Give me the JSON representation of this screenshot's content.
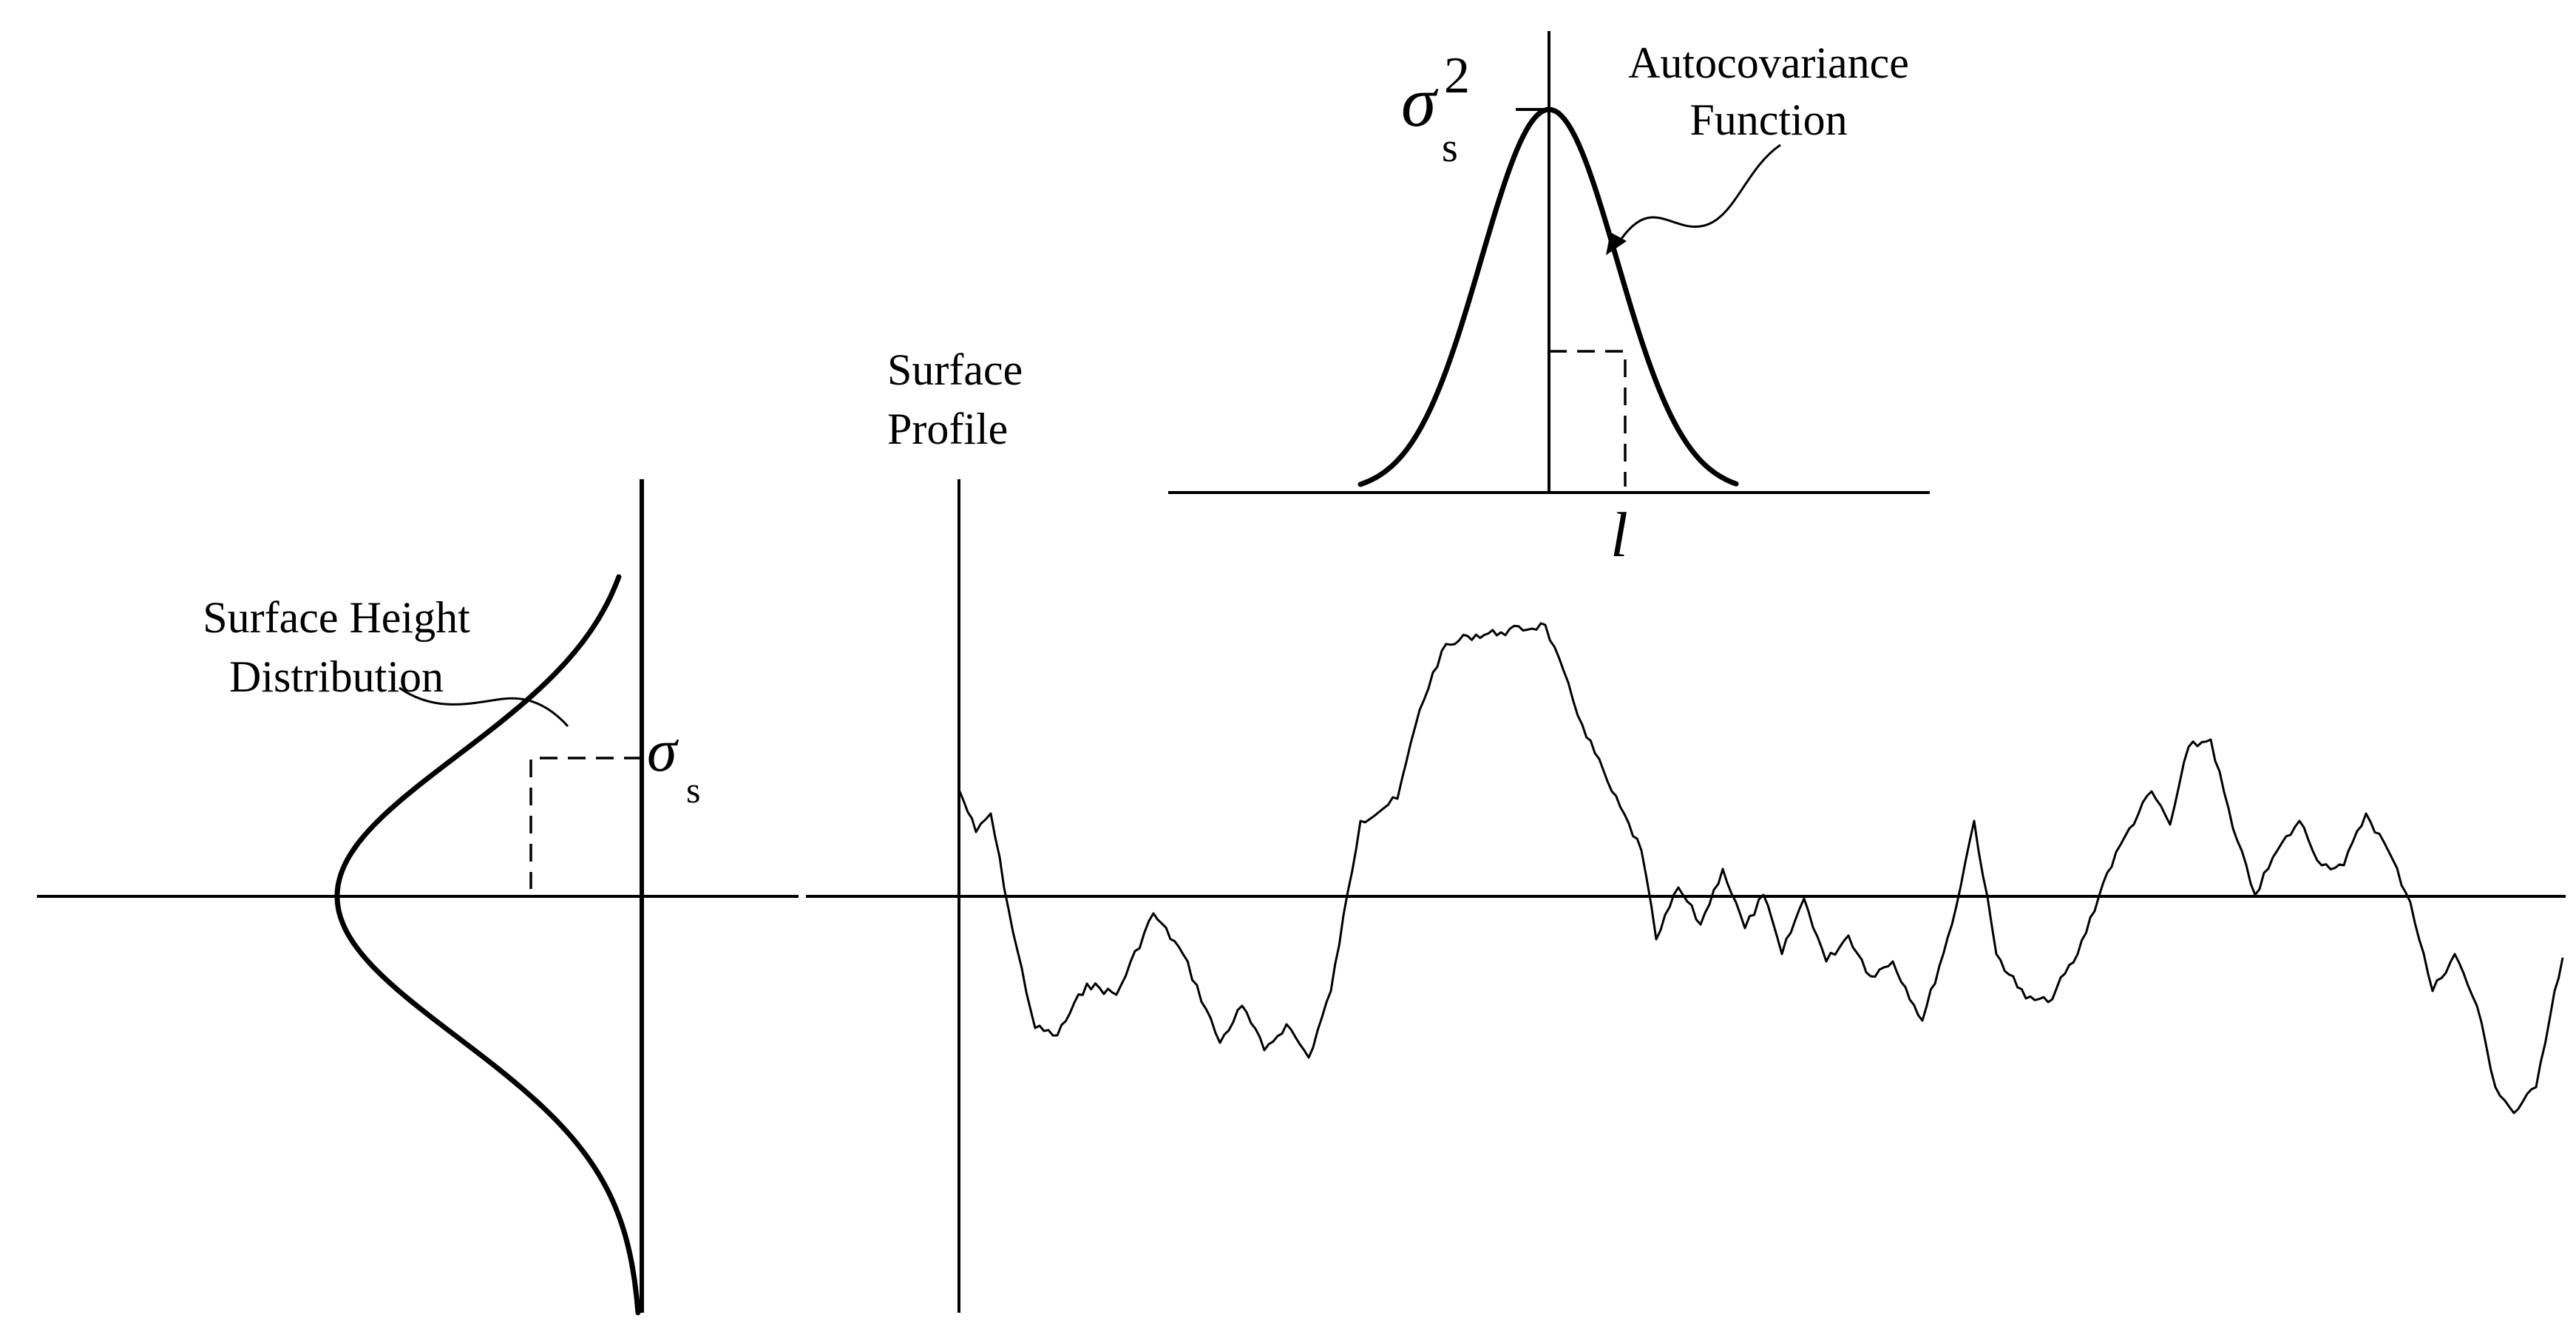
{
  "labels": {
    "autocovariance_line1": "Autocovariance",
    "autocovariance_line2": "Function",
    "sigma_symbol": "σ",
    "sigma_sq_superscript": "2",
    "sigma_subscript": "s",
    "correlation_length": "l",
    "surface_profile_line1": "Surface",
    "surface_profile_line2": "Profile",
    "height_dist_line1": "Surface Height",
    "height_dist_line2": "Distribution"
  }
}
